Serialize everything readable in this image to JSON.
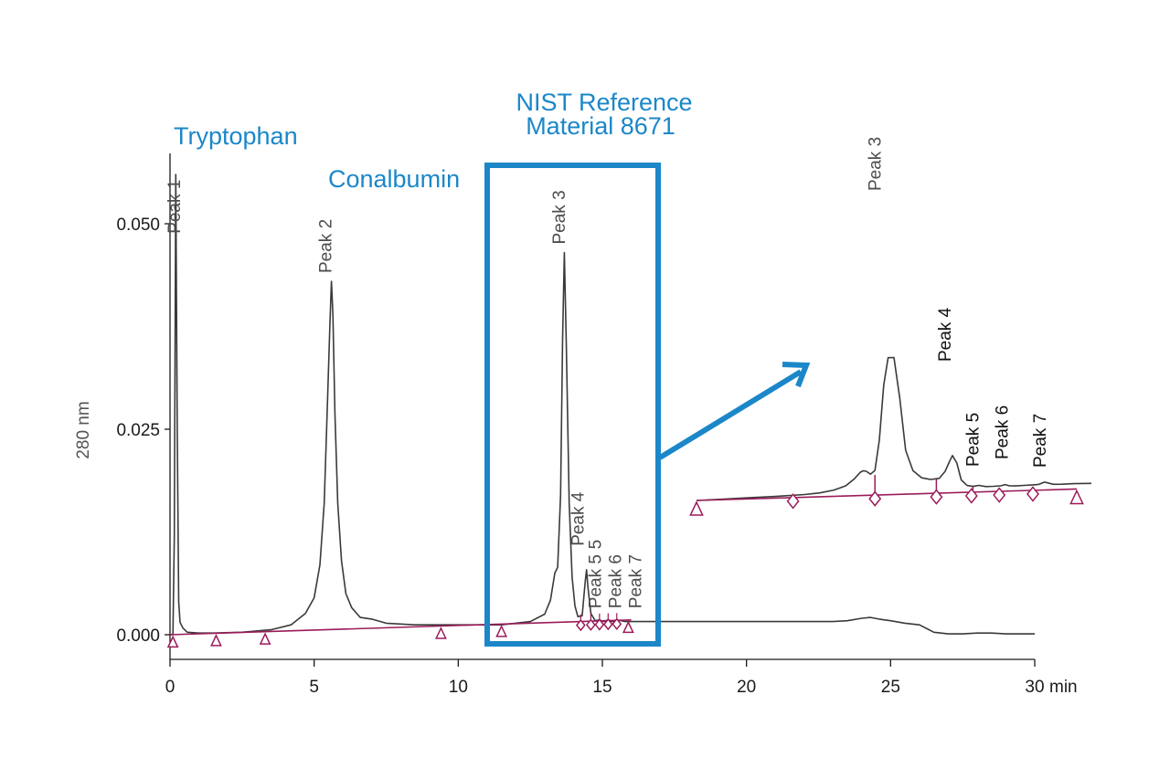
{
  "chart_data": [
    {
      "type": "line",
      "panel": "main",
      "ylabel": "280 nm",
      "xlabel": "",
      "x_unit": "min",
      "xlim": [
        0,
        30
      ],
      "ylim": [
        -0.002,
        0.058
      ],
      "x_ticks": [
        0,
        5,
        10,
        15,
        20,
        25,
        30
      ],
      "x_tick_labels": [
        "0",
        "5",
        "10",
        "15",
        "20",
        "25",
        "30"
      ],
      "y_ticks": [
        0.0,
        0.025,
        0.05
      ],
      "y_tick_labels": [
        "0.000",
        "0.025",
        "0.050"
      ],
      "grid": false,
      "series": [
        {
          "x": [
            0.0,
            0.1,
            0.15,
            0.2,
            0.25,
            0.3,
            0.35,
            0.45,
            0.6,
            1.0,
            1.5,
            2.5,
            3.5,
            4.2,
            4.7,
            5.0,
            5.2,
            5.35,
            5.45,
            5.55,
            5.6,
            5.65,
            5.72,
            5.82,
            5.95,
            6.1,
            6.3,
            6.6,
            7.0,
            7.5,
            8.5,
            9.5,
            10.5,
            11.5,
            12.5,
            13.0,
            13.2,
            13.35,
            13.45,
            13.55,
            13.62,
            13.68,
            13.75,
            13.85,
            13.95,
            14.05,
            14.15,
            14.3,
            14.4,
            14.45,
            14.5,
            14.6,
            14.75,
            14.9,
            15.05,
            15.2,
            15.35,
            15.5,
            15.65,
            15.8,
            16.0,
            17.0,
            18.0,
            19.0,
            20.0,
            21.0,
            22.0,
            23.0,
            23.5,
            24.0,
            24.3,
            24.6,
            25.0,
            25.5,
            26.0,
            26.5,
            27.0,
            27.5,
            28.0,
            28.5,
            29.0,
            29.5,
            30.0
          ],
          "y": [
            0.0,
            0.0,
            0.012,
            0.056,
            0.025,
            0.004,
            0.0015,
            0.0008,
            0.0003,
            0.0002,
            0.0002,
            0.0003,
            0.0006,
            0.0012,
            0.0026,
            0.0045,
            0.0085,
            0.016,
            0.027,
            0.038,
            0.043,
            0.039,
            0.027,
            0.016,
            0.009,
            0.005,
            0.0033,
            0.0021,
            0.0019,
            0.0014,
            0.0012,
            0.0012,
            0.0012,
            0.0012,
            0.0016,
            0.0025,
            0.0042,
            0.0075,
            0.0082,
            0.017,
            0.036,
            0.0465,
            0.035,
            0.016,
            0.007,
            0.0035,
            0.0022,
            0.0023,
            0.0063,
            0.0079,
            0.0058,
            0.0026,
            0.0017,
            0.0018,
            0.0016,
            0.0018,
            0.0016,
            0.0018,
            0.0017,
            0.0016,
            0.0016,
            0.0016,
            0.0016,
            0.0016,
            0.0016,
            0.0016,
            0.0016,
            0.0016,
            0.0017,
            0.002,
            0.0021,
            0.0019,
            0.0017,
            0.0014,
            0.0012,
            0.0003,
            0.0001,
            0.0001,
            0.0002,
            0.0002,
            0.0001,
            0.0001,
            0.0001
          ]
        }
      ],
      "baseline": {
        "x": [
          0.0,
          16.0
        ],
        "y": [
          0.0,
          0.0018
        ]
      },
      "triangle_markers_x": [
        0.1,
        1.6,
        3.3,
        9.4,
        11.5,
        15.9
      ],
      "diamond_markers_x": [
        14.25,
        14.6,
        14.9,
        15.2,
        15.5
      ],
      "peak_labels": [
        {
          "text": "Peak 1",
          "x": 0.35,
          "y": 0.0488
        },
        {
          "text": "Peak 2",
          "x": 5.6,
          "y": 0.044
        },
        {
          "text": "Peak 3",
          "x": 13.7,
          "y": 0.0475
        },
        {
          "text": "Peak 4",
          "x": 14.35,
          "y": 0.0108
        },
        {
          "text": "5",
          "x": 14.95,
          "y": 0.0104
        },
        {
          "text": "Peak 5",
          "x": 14.95,
          "y": 0.0032
        },
        {
          "text": "Peak 6",
          "x": 15.65,
          "y": 0.0032
        },
        {
          "text": "Peak 7",
          "x": 16.35,
          "y": 0.0032
        }
      ]
    },
    {
      "type": "line",
      "panel": "zoom-inset",
      "xlim": [
        18.3,
        31.8
      ],
      "series": [
        {
          "x": [
            18.3,
            19.0,
            20.0,
            21.0,
            22.0,
            22.5,
            23.0,
            23.4,
            23.7,
            23.9,
            24.0,
            24.1,
            24.25,
            24.4,
            24.55,
            24.7,
            24.85,
            25.05,
            25.25,
            25.45,
            25.7,
            26.0,
            26.3,
            26.6,
            26.8,
            26.95,
            27.05,
            27.2,
            27.35,
            27.55,
            27.75,
            27.95,
            28.2,
            28.45,
            28.7,
            28.85,
            29.0,
            29.2,
            29.5,
            29.8,
            30.0,
            30.2,
            30.5,
            30.8,
            31.2,
            31.8
          ],
          "y": [
            0.0,
            0.001,
            0.0025,
            0.004,
            0.0065,
            0.0093,
            0.0153,
            0.0247,
            0.0413,
            0.0567,
            0.06,
            0.0587,
            0.0513,
            0.06,
            0.1333,
            0.2667,
            0.3333,
            0.3333,
            0.2333,
            0.1067,
            0.0567,
            0.0387,
            0.034,
            0.036,
            0.0527,
            0.0767,
            0.0907,
            0.072,
            0.0307,
            0.0167,
            0.014,
            0.016,
            0.0127,
            0.0127,
            0.0133,
            0.016,
            0.0127,
            0.012,
            0.0127,
            0.0133,
            0.014,
            0.0193,
            0.0133,
            0.0127,
            0.0133,
            0.0127
          ]
        }
      ],
      "baseline_x": [
        18.3,
        31.3
      ],
      "triangle_markers_x": [
        18.3,
        31.3
      ],
      "diamond_markers_x": [
        21.6,
        24.4,
        26.5,
        27.7,
        28.65,
        29.8
      ],
      "drop_lines": [
        {
          "x": 24.4,
          "y": 0.049
        },
        {
          "x": 26.5,
          "y": 0.034
        },
        {
          "x": 27.75,
          "y": 0.014
        }
      ],
      "peak_labels": [
        {
          "text": "Peak 3",
          "x": 24.6,
          "tone": "grey"
        },
        {
          "text": "Peak 4",
          "x": 27.05,
          "tone": "dark"
        },
        {
          "text": "Peak 5",
          "x": 28.0,
          "tone": "dark"
        },
        {
          "text": "Peak 6",
          "x": 29.0,
          "tone": "dark"
        },
        {
          "text": "Peak 7",
          "x": 30.3,
          "tone": "dark"
        }
      ]
    }
  ],
  "annotations": {
    "tryptophan": "Tryptophan",
    "conalbumin": "Conalbumin",
    "nist_line1": "NIST Reference",
    "nist_line2": "Material 8671"
  },
  "x_unit_label": "min",
  "colors": {
    "trace": "#3a3a3a",
    "axis": "#1a1a1a",
    "baseline": "#9b1b5a",
    "annotation": "#1b87c9",
    "peak_label_grey": "#4d4d4d",
    "peak_label_dark": "#111111"
  }
}
